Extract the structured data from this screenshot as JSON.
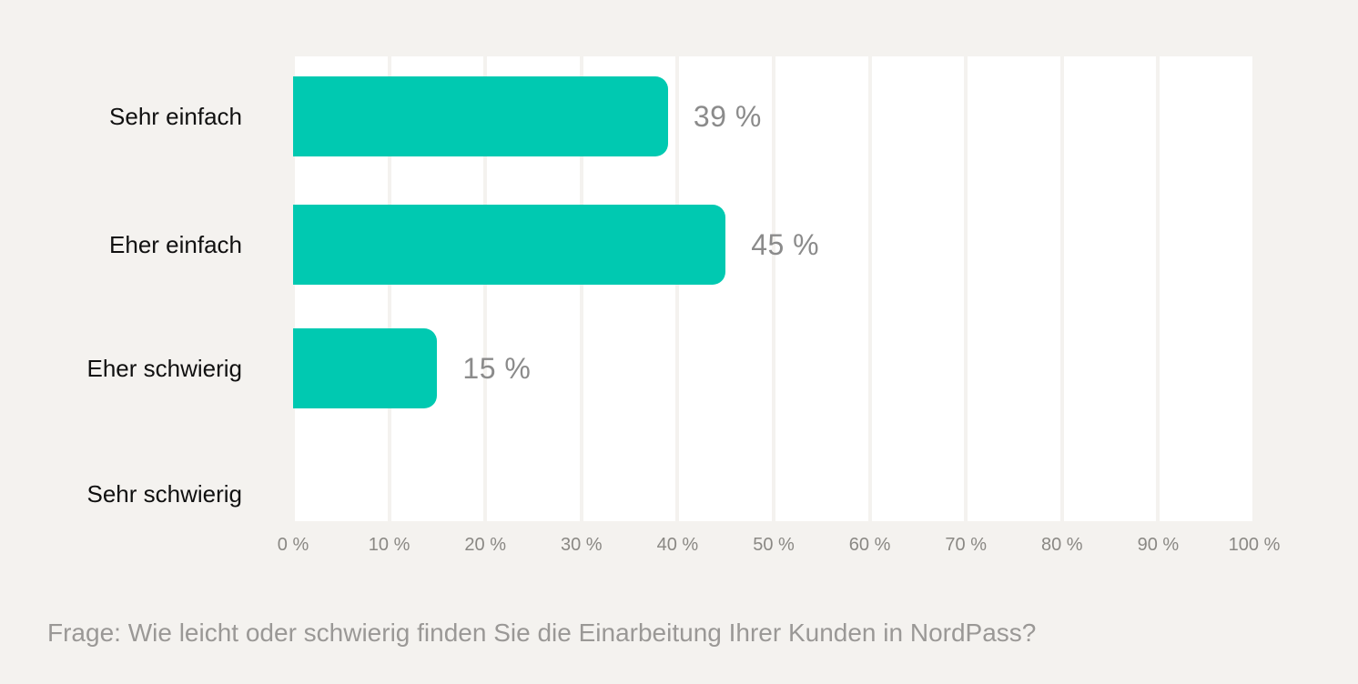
{
  "page": {
    "background_color": "#f4f2ef"
  },
  "chart_data": {
    "type": "bar",
    "orientation": "horizontal",
    "title": "",
    "categories": [
      "Sehr einfach",
      "Eher einfach",
      "Eher schwierig",
      "Sehr schwierig"
    ],
    "values": [
      39,
      45,
      15,
      0
    ],
    "value_labels": [
      "39 %",
      "45 %",
      "15 %",
      ""
    ],
    "x_tick_labels": [
      "0 %",
      "10 %",
      "20 %",
      "30 %",
      "40 %",
      "50 %",
      "60 %",
      "70 %",
      "80 %",
      "90 %",
      "100 %"
    ],
    "xlim": [
      0,
      100
    ],
    "grid": "vertical-only",
    "legend": "none",
    "bar_color": "#00c9b1",
    "plot_background": "#ffffff",
    "gridline_color": "#f4f2ef",
    "value_label_color": "#8b8b8b",
    "category_label_color": "#101010",
    "tick_label_color": "#8a8884"
  },
  "caption": {
    "text": "Frage: Wie leicht oder schwierig finden Sie die Einarbeitung Ihrer Kunden in NordPass?",
    "color": "#9a9896"
  }
}
